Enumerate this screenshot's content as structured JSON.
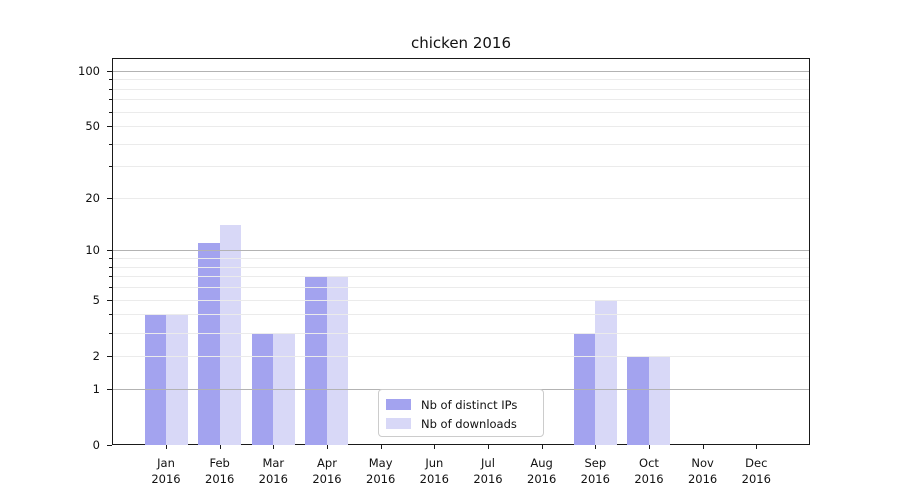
{
  "title": "chicken 2016",
  "legend": {
    "items": [
      {
        "label": "Nb of distinct IPs",
        "color": "#a3a3ef"
      },
      {
        "label": "Nb of downloads",
        "color": "#d8d8f7"
      }
    ]
  },
  "chart_data": {
    "type": "bar",
    "title": "chicken 2016",
    "categories": [
      "Jan 2016",
      "Feb 2016",
      "Mar 2016",
      "Apr 2016",
      "May 2016",
      "Jun 2016",
      "Jul 2016",
      "Aug 2016",
      "Sep 2016",
      "Oct 2016",
      "Nov 2016",
      "Dec 2016"
    ],
    "series": [
      {
        "name": "Nb of distinct IPs",
        "color": "#a3a3ef",
        "values": [
          4,
          11,
          3,
          7,
          0,
          0,
          0,
          0,
          3,
          2,
          0,
          0
        ]
      },
      {
        "name": "Nb of downloads",
        "color": "#d8d8f7",
        "values": [
          4,
          14,
          3,
          7,
          0,
          0,
          0,
          0,
          5,
          2,
          0,
          0
        ]
      }
    ],
    "xlabel": "",
    "ylabel": "",
    "yscale": "log1p",
    "ylim": [
      0,
      117
    ],
    "ytick_values": [
      0,
      1,
      2,
      5,
      10,
      20,
      50,
      100
    ],
    "major_gridline_values": [
      1,
      10,
      100
    ],
    "minor_gridline_values": [
      2,
      3,
      4,
      5,
      6,
      7,
      8,
      9,
      20,
      30,
      40,
      50,
      60,
      70,
      80,
      90
    ],
    "grid": true,
    "grid_above_bars": true,
    "legend_position": "lower center",
    "colors": {
      "major_grid": "#b3b3b3",
      "minor_grid": "#ebebeb",
      "spine": "#1a1a1a",
      "text": "#111111"
    }
  }
}
